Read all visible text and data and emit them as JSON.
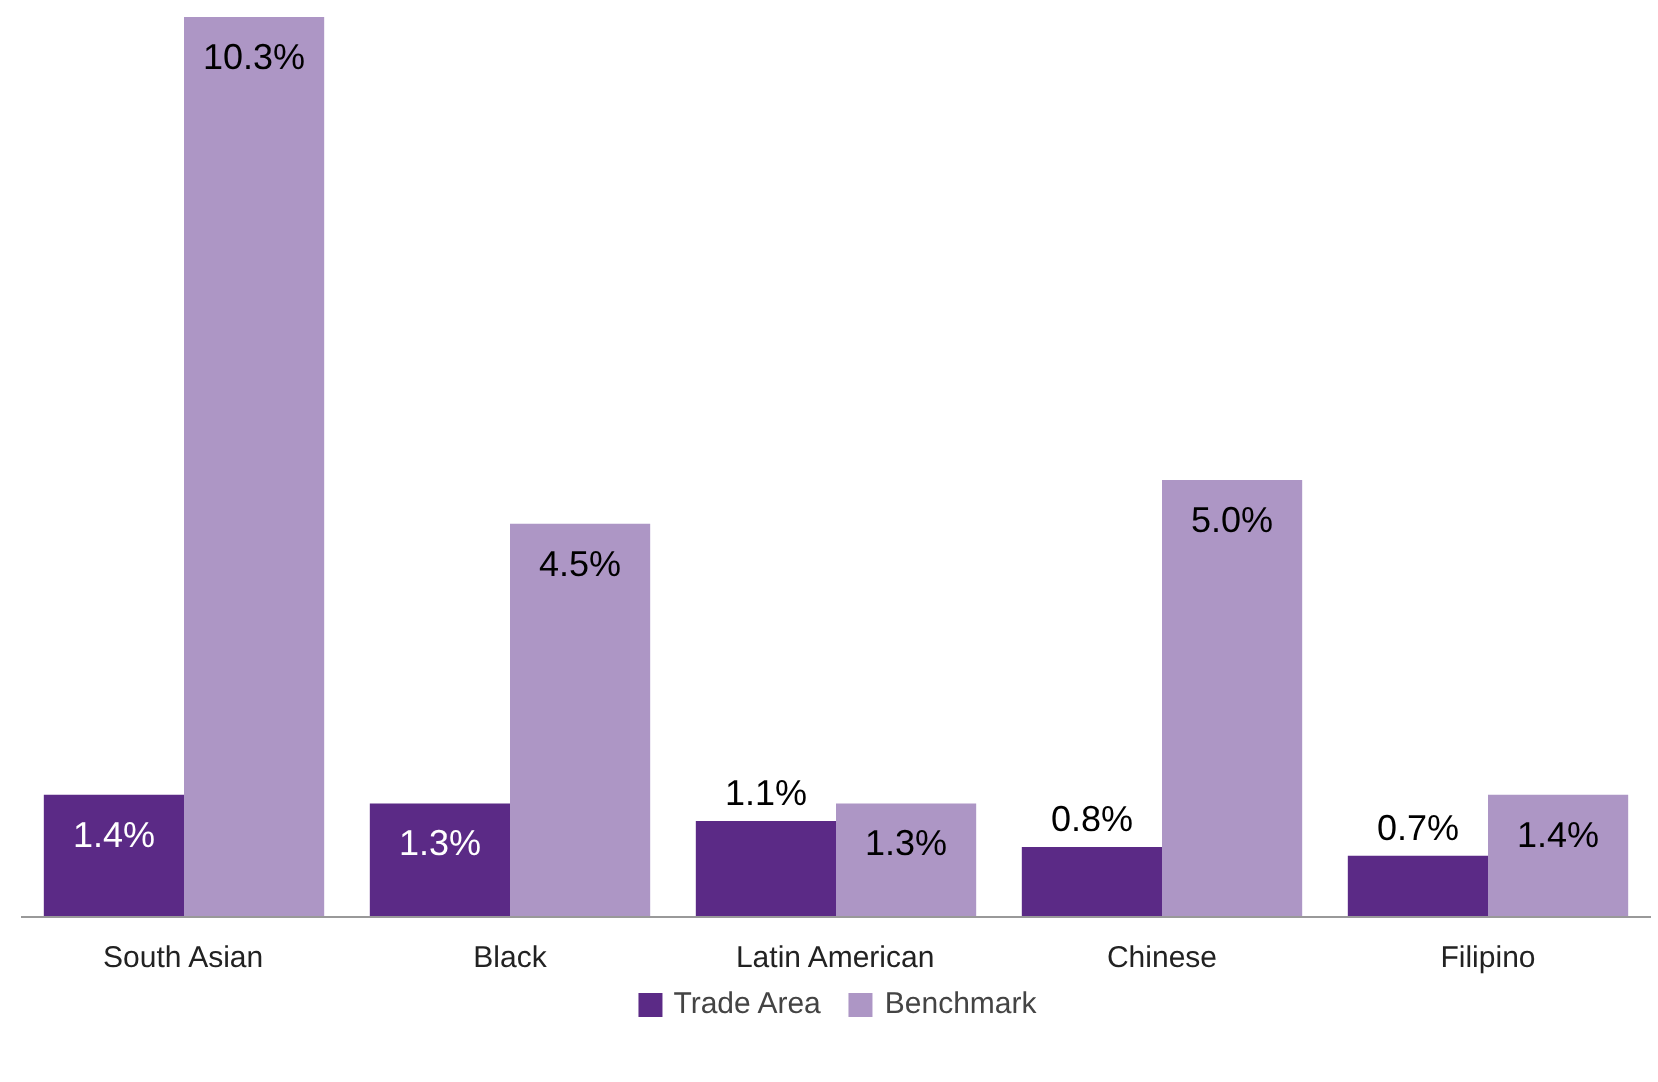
{
  "chart_data": {
    "type": "bar",
    "categories": [
      "South Asian",
      "Black",
      "Latin American",
      "Chinese",
      "Filipino"
    ],
    "series": [
      {
        "name": "Trade Area",
        "color": "#5b2a86",
        "values": [
          1.4,
          1.3,
          1.1,
          0.8,
          0.7
        ],
        "value_labels": [
          "1.4%",
          "1.3%",
          "1.1%",
          "0.8%",
          "0.7%"
        ]
      },
      {
        "name": "Benchmark",
        "color": "#ad96c5",
        "values": [
          10.3,
          4.5,
          1.3,
          5.0,
          1.4
        ],
        "value_labels": [
          "10.3%",
          "4.5%",
          "1.3%",
          "5.0%",
          "1.4%"
        ]
      }
    ],
    "legend": "bottom",
    "grid": false
  }
}
